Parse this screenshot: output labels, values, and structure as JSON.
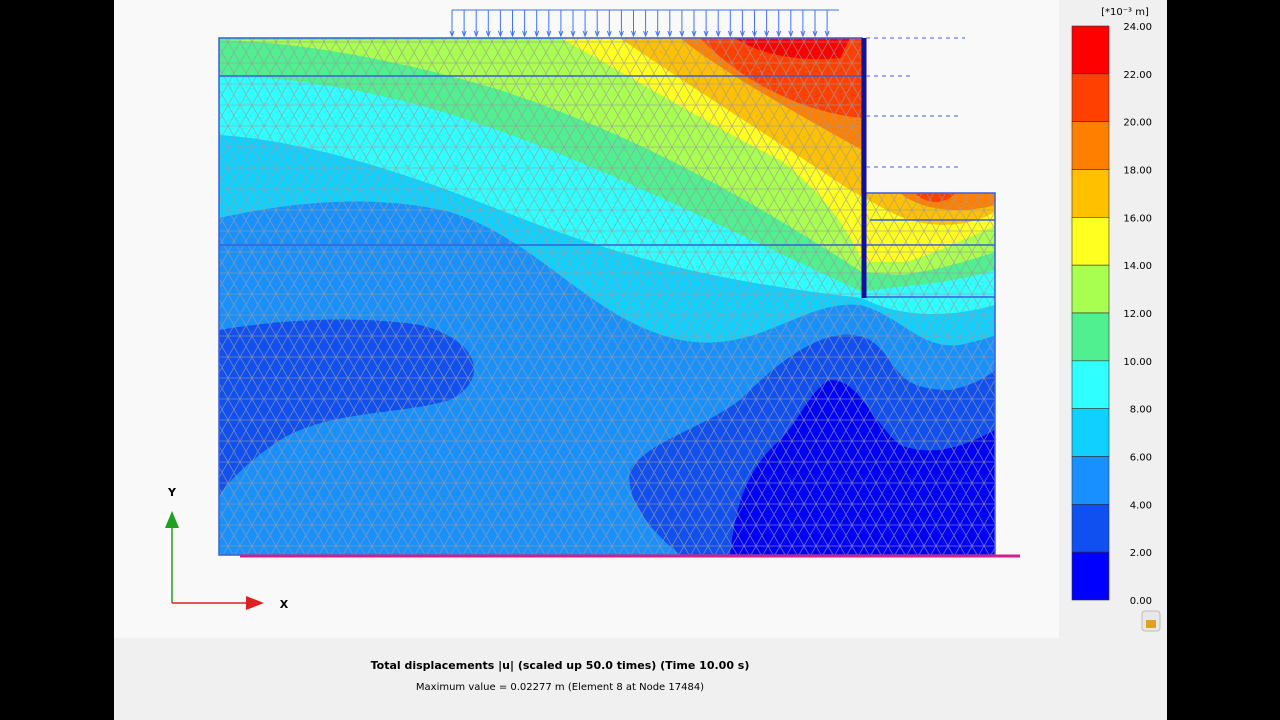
{
  "legend": {
    "unit": "[*10⁻³ m]",
    "labels": [
      "24.00",
      "22.00",
      "20.00",
      "18.00",
      "16.00",
      "14.00",
      "12.00",
      "10.00",
      "8.00",
      "6.00",
      "4.00",
      "2.00",
      "0.00"
    ],
    "colors": [
      "#ff0000",
      "#ff4000",
      "#ff8000",
      "#ffc000",
      "#ffff20",
      "#a8ff50",
      "#50f090",
      "#30ffff",
      "#10d0ff",
      "#1890ff",
      "#1050f0",
      "#0000ff"
    ]
  },
  "axes": {
    "y": "Y",
    "x": "X"
  },
  "caption": {
    "title": "Total displacements |u| (scaled up 50.0 times) (Time 10.00 s)",
    "detail": "Maximum value = 0.02277 m (Element 8 at Node 17484)"
  }
}
